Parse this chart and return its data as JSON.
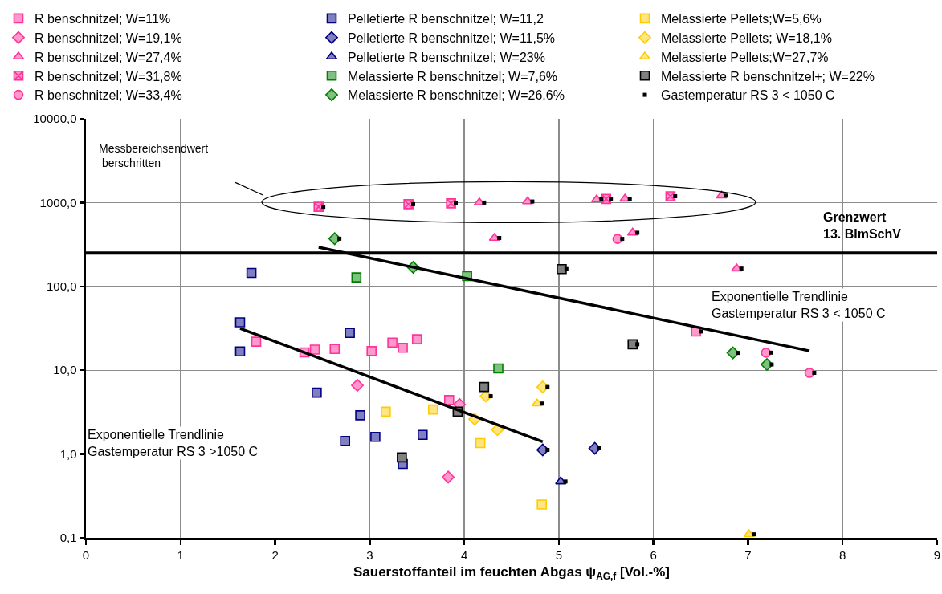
{
  "chart_data": {
    "type": "scatter",
    "xlabel": "Sauerstoffanteil im feuchten Abgas ψ$_{AG,f}$ [Vol.-%]",
    "xlim": [
      0,
      9
    ],
    "xticks": [
      0,
      1,
      2,
      3,
      4,
      5,
      6,
      7,
      8,
      9
    ],
    "ylim": [
      0.1,
      10000
    ],
    "yticks": [
      {
        "value": 0.1,
        "label": "0,1"
      },
      {
        "value": 1,
        "label": "1,0"
      },
      {
        "value": 10,
        "label": "10,0"
      },
      {
        "value": 100,
        "label": "100,0"
      },
      {
        "value": 1000,
        "label": "1000,0"
      },
      {
        "value": 10000,
        "label": "10000,0"
      }
    ],
    "log": true,
    "grid": true,
    "legend": "top",
    "series": [
      {
        "name": "R benschnitzel; W=11%",
        "color": "#ff3399",
        "marker": "square",
        "x": [
          1.8,
          2.31,
          2.42,
          2.63,
          3.02,
          3.24,
          3.35,
          3.5,
          3.84,
          6.45
        ],
        "values": [
          21.9,
          16.3,
          17.6,
          17.9,
          16.9,
          21.4,
          18.5,
          23.4,
          4.4,
          29.0
        ]
      },
      {
        "name": "R benschnitzel; W=19,1%",
        "color": "#ff3399",
        "marker": "diamond",
        "x": [
          2.87,
          3.95,
          3.83
        ],
        "values": [
          6.6,
          3.9,
          0.53
        ]
      },
      {
        "name": "R benschnitzel; W=27,4%",
        "color": "#ff3399",
        "marker": "triangle",
        "x": [
          4.16,
          4.67,
          5.4,
          5.7,
          6.72,
          4.32,
          5.78,
          6.88
        ],
        "values": [
          1000,
          1030,
          1090,
          1110,
          1210,
          378,
          437,
          163
        ]
      },
      {
        "name": "R benschnitzel; W=31,8%",
        "color": "#ff3399",
        "marker": "cross",
        "x": [
          2.46,
          3.41,
          3.86,
          5.5,
          6.18
        ],
        "values": [
          891,
          957,
          978,
          1104,
          1191
        ]
      },
      {
        "name": "R benschnitzel; W=33,4%",
        "color": "#ff3399",
        "marker": "circle",
        "x": [
          5.62,
          7.19,
          7.65
        ],
        "values": [
          369,
          16.2,
          9.3
        ]
      },
      {
        "name": "Pelletierte R benschnitzel; W=11,2",
        "color": "#000080",
        "marker": "square",
        "x": [
          1.75,
          1.63,
          1.63,
          2.79,
          2.44,
          2.9,
          2.74,
          3.06,
          3.56,
          3.35
        ],
        "values": [
          145,
          37.3,
          16.8,
          27.9,
          5.4,
          2.9,
          1.43,
          1.6,
          1.69,
          0.76
        ]
      },
      {
        "name": "Pelletierte R benschnitzel; W=11,5%",
        "color": "#000080",
        "marker": "diamond",
        "x": [
          4.83,
          5.38
        ],
        "values": [
          1.12,
          1.17
        ]
      },
      {
        "name": "Pelletierte R benschnitzel; W=23%",
        "color": "#000080",
        "marker": "triangle",
        "x": [
          5.02
        ],
        "values": [
          0.47
        ]
      },
      {
        "name": "Melassierte R benschnitzel; W=7,6%",
        "color": "#008000",
        "marker": "square",
        "x": [
          2.86,
          4.03,
          4.36
        ],
        "values": [
          128,
          133,
          10.5
        ]
      },
      {
        "name": "Melassierte R benschnitzel; W=26,6%",
        "color": "#008000",
        "marker": "diamond",
        "x": [
          2.63,
          3.46,
          6.84,
          7.2
        ],
        "values": [
          371,
          169,
          16.1,
          11.7
        ]
      },
      {
        "name": "Melassierte Pellets;W=5,6%",
        "color": "#ffcc00",
        "marker": "square",
        "x": [
          3.17,
          3.67,
          4.17,
          4.82
        ],
        "values": [
          3.2,
          3.4,
          1.35,
          0.25
        ]
      },
      {
        "name": "Melassierte Pellets; W=18,1%",
        "color": "#ffcc00",
        "marker": "diamond",
        "x": [
          4.23,
          4.83,
          4.11,
          4.35
        ],
        "values": [
          4.9,
          6.3,
          2.6,
          1.95
        ]
      },
      {
        "name": "Melassierte Pellets;W=27,7%",
        "color": "#ffcc00",
        "marker": "triangle",
        "x": [
          4.77,
          7.01
        ],
        "values": [
          4.0,
          0.11
        ]
      },
      {
        "name": "Melassierte R benschnitzel+; W=22%",
        "color": "#000000",
        "marker": "square",
        "x": [
          5.03,
          5.78,
          4.21,
          3.93,
          3.34
        ],
        "values": [
          161,
          20.4,
          6.3,
          3.2,
          0.91
        ]
      },
      {
        "name": "Gastemperatur RS 3 < 1050 C",
        "color": "#000000",
        "marker": "square",
        "x": [
          2.51,
          3.46,
          3.91,
          5.55,
          6.23,
          4.21,
          4.72,
          5.45,
          5.75,
          6.77,
          4.37,
          5.83,
          6.93,
          5.67,
          7.24,
          7.7,
          2.68,
          6.89,
          7.25,
          5.08,
          5.83,
          6.5,
          4.28,
          4.88,
          4.82,
          7.06,
          4.88,
          5.43,
          5.07
        ],
        "values": [
          891,
          957,
          978,
          1104,
          1191,
          1000,
          1030,
          1090,
          1110,
          1210,
          378,
          437,
          163,
          369,
          16.2,
          9.3,
          371,
          16.1,
          11.7,
          161,
          20.4,
          29.0,
          4.9,
          6.3,
          4.0,
          0.11,
          1.12,
          1.17,
          0.47
        ]
      },
      {
        "type": "line",
        "color": "#000000",
        "marker": "none",
        "x": [
          1.63,
          4.83
        ],
        "values": [
          31.5,
          1.4
        ]
      },
      {
        "type": "line",
        "color": "#000000",
        "marker": "none",
        "x": [
          2.46,
          7.65
        ],
        "values": [
          293,
          17.0
        ]
      }
    ],
    "ref_lines": [
      {
        "axis": "y",
        "value": 250,
        "label": "Grenzwert\n13. BImSchV",
        "color": "#000000"
      }
    ],
    "annotations": [
      "Messbereichsendwert\n berschritten",
      "Exponentielle Trendlinie\nGastemperatur RS 3 < 1050 C",
      "Exponentielle Trendlinie\nGastemperatur RS 3 >1050 C"
    ]
  }
}
